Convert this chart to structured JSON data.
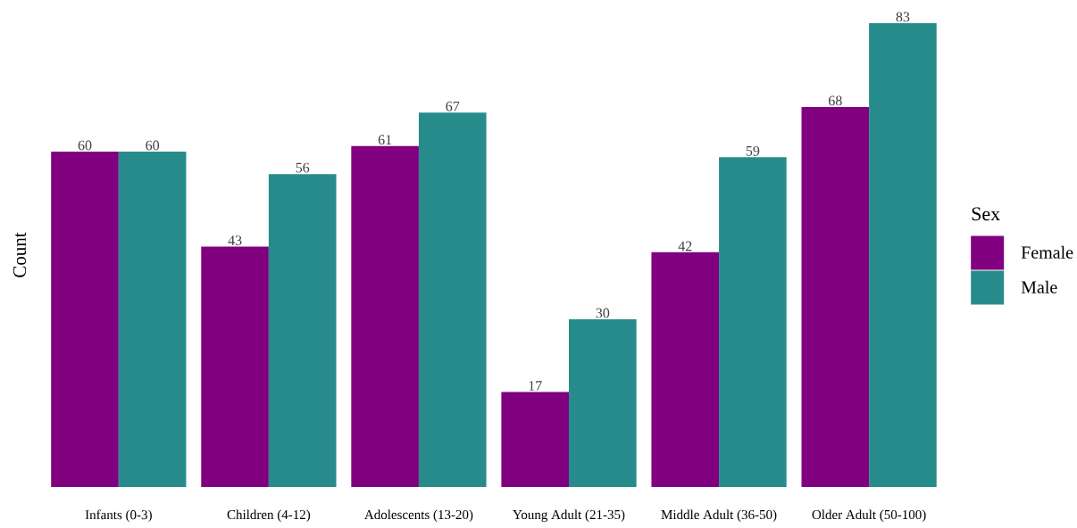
{
  "chart_data": {
    "type": "bar",
    "categories": [
      "Infants (0-3)",
      "Children (4-12)",
      "Adolescents (13-20)",
      "Young Adult (21-35)",
      "Middle Adult (36-50)",
      "Older Adult (50-100)"
    ],
    "series": [
      {
        "name": "Female",
        "color": "#800080",
        "values": [
          60,
          43,
          61,
          17,
          42,
          68
        ]
      },
      {
        "name": "Male",
        "color": "#288b8b",
        "values": [
          60,
          56,
          67,
          30,
          59,
          83
        ]
      }
    ],
    "ylabel": "Count",
    "legend_title": "Sex",
    "legend": "right",
    "data_labels": true,
    "tick_labels": "x"
  }
}
